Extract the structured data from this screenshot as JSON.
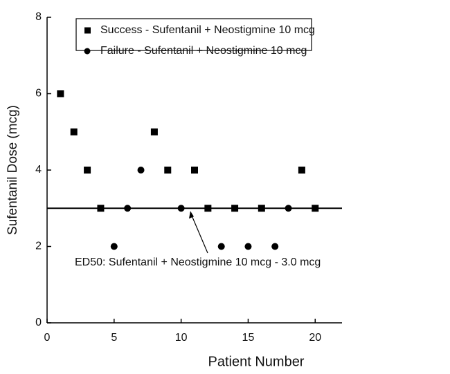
{
  "chart_data": {
    "type": "scatter",
    "x_label": "Patient Number",
    "y_label": "Sufentanil Dose (mcg)",
    "xlim": [
      0,
      22
    ],
    "xticks": [
      0,
      5,
      10,
      15,
      20
    ],
    "ylim": [
      0,
      8
    ],
    "yticks": [
      0,
      2,
      4,
      6,
      8
    ],
    "series": [
      {
        "name": "Success - Sufentanil + Neostigmine 10 mcg",
        "color": "#000000",
        "marker": "square",
        "x": [
          1,
          2,
          3,
          4,
          8,
          9,
          11,
          12,
          14,
          16,
          19,
          20
        ],
        "values": [
          6,
          5,
          4,
          3,
          5,
          4,
          4,
          3,
          3,
          3,
          4,
          3
        ]
      },
      {
        "name": "Failure - Sufentanil + Neostigmine 10 mcg",
        "color": "#000000",
        "marker": "circle",
        "x": [
          5,
          6,
          7,
          10,
          13,
          15,
          17,
          18
        ],
        "values": [
          2,
          3,
          4,
          3,
          2,
          2,
          2,
          3
        ]
      }
    ],
    "reference_line": 3,
    "annotation": "ED50: Sufentanil + Neostigmine 10 mcg - 3.0 mcg",
    "legend": "top"
  }
}
